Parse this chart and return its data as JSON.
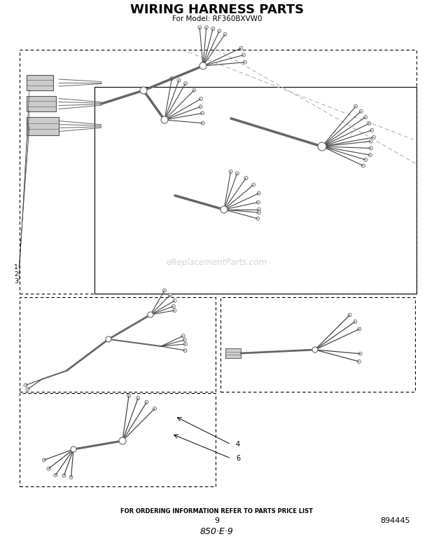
{
  "title": "WIRING HARNESS PARTS",
  "subtitle": "For Model: RF360BXVW0",
  "footer_text": "FOR ORDERING INFORMATION REFER TO PARTS PRICE LIST",
  "page_number": "9",
  "doc_number": "894445",
  "part_number": "850·E·9",
  "watermark": "eReplacementParts.com",
  "bg_color": "#ffffff",
  "wire_color": "#666666",
  "wire_dark": "#444444",
  "wire_light": "#999999"
}
